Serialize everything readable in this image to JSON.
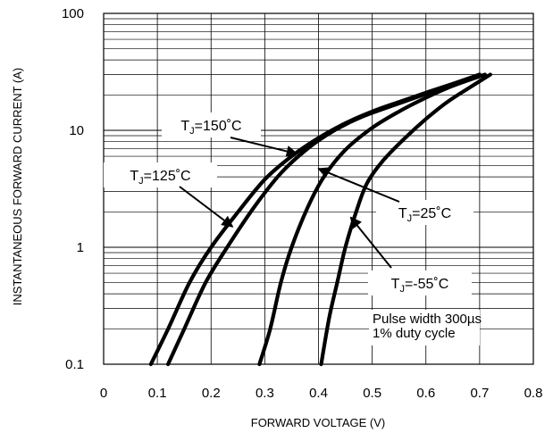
{
  "chart_data": {
    "type": "line",
    "title": "",
    "xlabel": "FORWARD VOLTAGE (V)",
    "ylabel": "INSTANTANEOUS FORWARD CURRENT (A)",
    "xlim": [
      0,
      0.8
    ],
    "ylim": [
      0.1,
      100
    ],
    "yscale": "log",
    "grid": true,
    "x_ticks": [
      "0",
      "0.1",
      "0.2",
      "0.3",
      "0.4",
      "0.5",
      "0.6",
      "0.7",
      "0.8"
    ],
    "y_ticks": [
      "0.1",
      "1",
      "10",
      "100"
    ],
    "series": [
      {
        "name": "T_J=150°C",
        "points": [
          [
            0.088,
            0.1
          ],
          [
            0.12,
            0.2
          ],
          [
            0.16,
            0.5
          ],
          [
            0.2,
            1.0
          ],
          [
            0.25,
            2.0
          ],
          [
            0.3,
            3.8
          ],
          [
            0.35,
            6.0
          ],
          [
            0.4,
            8.6
          ],
          [
            0.45,
            11.5
          ],
          [
            0.5,
            14.5
          ],
          [
            0.55,
            17.5
          ],
          [
            0.6,
            21
          ],
          [
            0.65,
            25
          ],
          [
            0.7,
            30
          ]
        ]
      },
      {
        "name": "T_J=125°C",
        "points": [
          [
            0.12,
            0.1
          ],
          [
            0.15,
            0.2
          ],
          [
            0.19,
            0.5
          ],
          [
            0.23,
            1.0
          ],
          [
            0.28,
            2.2
          ],
          [
            0.33,
            4.3
          ],
          [
            0.38,
            7.0
          ],
          [
            0.43,
            10.0
          ],
          [
            0.48,
            13.0
          ],
          [
            0.55,
            17.0
          ],
          [
            0.6,
            20.5
          ],
          [
            0.65,
            24.5
          ],
          [
            0.7,
            30
          ]
        ]
      },
      {
        "name": "T_J=25°C",
        "points": [
          [
            0.29,
            0.1
          ],
          [
            0.31,
            0.2
          ],
          [
            0.33,
            0.5
          ],
          [
            0.35,
            1.0
          ],
          [
            0.38,
            2.2
          ],
          [
            0.41,
            4.0
          ],
          [
            0.45,
            6.8
          ],
          [
            0.5,
            10.5
          ],
          [
            0.55,
            14.5
          ],
          [
            0.6,
            19
          ],
          [
            0.65,
            24
          ],
          [
            0.71,
            30
          ]
        ]
      },
      {
        "name": "T_J=-55°C",
        "points": [
          [
            0.405,
            0.1
          ],
          [
            0.42,
            0.25
          ],
          [
            0.435,
            0.5
          ],
          [
            0.45,
            1.0
          ],
          [
            0.47,
            2.0
          ],
          [
            0.49,
            3.5
          ],
          [
            0.52,
            5.5
          ],
          [
            0.56,
            8.5
          ],
          [
            0.6,
            12.5
          ],
          [
            0.64,
            17.5
          ],
          [
            0.68,
            23
          ],
          [
            0.72,
            30
          ]
        ]
      }
    ],
    "annotations": [
      {
        "series_index": 0,
        "base": "T",
        "sub": "J",
        "tail": "=150˚C",
        "arrow_to": [
          0.36,
          6.3
        ]
      },
      {
        "series_index": 1,
        "base": "T",
        "sub": "J",
        "tail": "=125˚C",
        "arrow_to": [
          0.24,
          1.5
        ]
      },
      {
        "series_index": 2,
        "base": "T",
        "sub": "J",
        "tail": "=25˚C",
        "arrow_to": [
          0.4,
          4.7
        ]
      },
      {
        "series_index": 3,
        "base": "T",
        "sub": "J",
        "tail": "=-55˚C",
        "arrow_to": [
          0.46,
          1.8
        ]
      }
    ],
    "note_lines": [
      "Pulse width 300µs",
      "1% duty cycle"
    ]
  }
}
